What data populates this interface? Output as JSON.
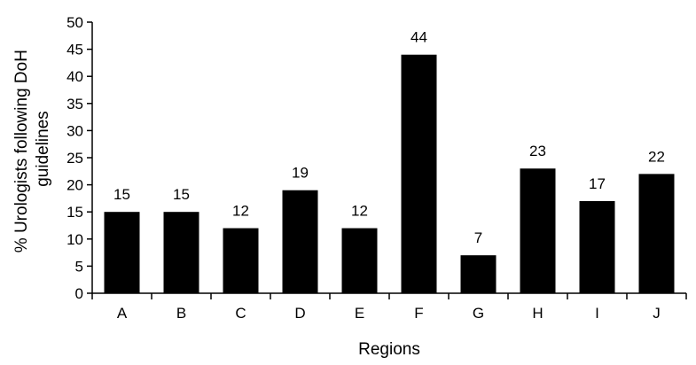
{
  "chart_data": {
    "type": "bar",
    "categories": [
      "A",
      "B",
      "C",
      "D",
      "E",
      "F",
      "G",
      "H",
      "I",
      "J"
    ],
    "values": [
      15,
      15,
      12,
      19,
      12,
      44,
      7,
      23,
      17,
      22
    ],
    "data_labels": [
      "15",
      "15",
      "12",
      "19",
      "12",
      "44",
      "7",
      "23",
      "17",
      "22"
    ],
    "xlabel": "Regions",
    "ylabel_lines": [
      "% Urologists following DoH",
      "guidelines"
    ],
    "ylim": [
      0,
      50
    ],
    "yticks": [
      0,
      5,
      10,
      15,
      20,
      25,
      30,
      35,
      40,
      45,
      50
    ],
    "grid": false,
    "bar_color": "#000000"
  }
}
